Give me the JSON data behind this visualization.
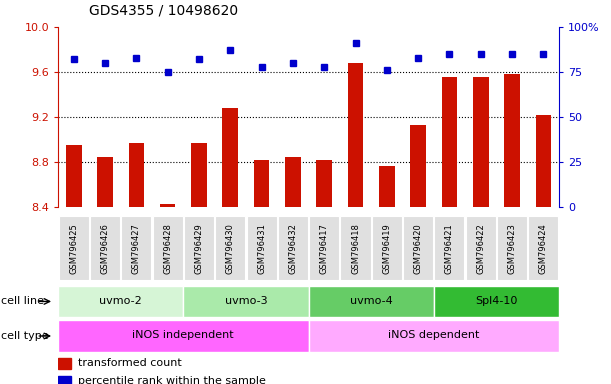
{
  "title": "GDS4355 / 10498620",
  "samples": [
    "GSM796425",
    "GSM796426",
    "GSM796427",
    "GSM796428",
    "GSM796429",
    "GSM796430",
    "GSM796431",
    "GSM796432",
    "GSM796417",
    "GSM796418",
    "GSM796419",
    "GSM796420",
    "GSM796421",
    "GSM796422",
    "GSM796423",
    "GSM796424"
  ],
  "transformed_count": [
    8.95,
    8.85,
    8.97,
    8.43,
    8.97,
    9.28,
    8.82,
    8.85,
    8.82,
    9.68,
    8.77,
    9.13,
    9.56,
    9.56,
    9.58,
    9.22
  ],
  "percentile_rank": [
    82,
    80,
    83,
    75,
    82,
    87,
    78,
    80,
    78,
    91,
    76,
    83,
    85,
    85,
    85,
    85
  ],
  "cell_lines": [
    {
      "label": "uvmo-2",
      "start": 0,
      "end": 4,
      "color": "#d6f5d6"
    },
    {
      "label": "uvmo-3",
      "start": 4,
      "end": 8,
      "color": "#aaeaaa"
    },
    {
      "label": "uvmo-4",
      "start": 8,
      "end": 12,
      "color": "#66cc66"
    },
    {
      "label": "Spl4-10",
      "start": 12,
      "end": 16,
      "color": "#33bb33"
    }
  ],
  "cell_types": [
    {
      "label": "iNOS independent",
      "start": 0,
      "end": 8,
      "color": "#ff66ff"
    },
    {
      "label": "iNOS dependent",
      "start": 8,
      "end": 16,
      "color": "#ffaaff"
    }
  ],
  "ylim_left": [
    8.4,
    10.0
  ],
  "ylim_right": [
    0,
    100
  ],
  "yticks_left": [
    8.4,
    8.8,
    9.2,
    9.6,
    10.0
  ],
  "yticks_right": [
    0,
    25,
    50,
    75,
    100
  ],
  "bar_color": "#cc1100",
  "dot_color": "#0000cc",
  "bar_bottom": 8.4,
  "grid_lines": [
    8.8,
    9.2,
    9.6
  ]
}
